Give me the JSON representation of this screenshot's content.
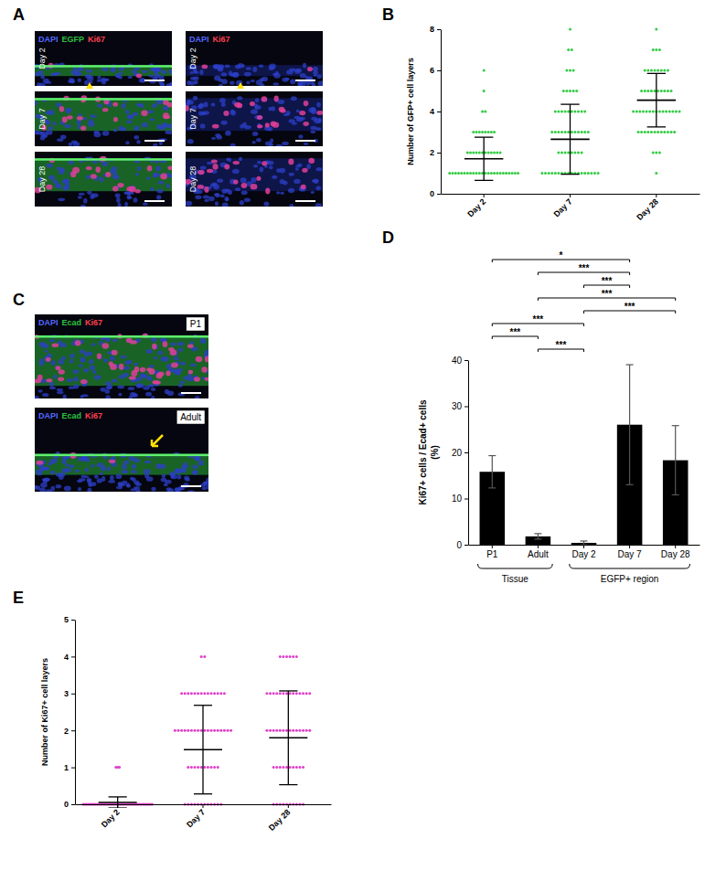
{
  "panel_letters": [
    "A",
    "B",
    "C",
    "D",
    "E"
  ],
  "images": {
    "A": {
      "columns": [
        {
          "channels": [
            {
              "text": "DAPI",
              "color": "#5566ff"
            },
            {
              "text": "EGFP",
              "color": "#2fc23f"
            },
            {
              "text": "Ki67",
              "color": "#ff4050"
            }
          ]
        },
        {
          "channels": [
            {
              "text": "DAPI",
              "color": "#5566ff"
            },
            {
              "text": "Ki67",
              "color": "#ff4050"
            }
          ]
        }
      ],
      "rows": [
        "Day 2",
        "Day 7",
        "Day 28"
      ]
    },
    "C": {
      "channels": [
        {
          "text": "DAPI",
          "color": "#5566ff"
        },
        {
          "text": "Ecad",
          "color": "#2fc23f"
        },
        {
          "text": "Ki67",
          "color": "#ff4050"
        }
      ],
      "panels": [
        "P1",
        "Adult"
      ]
    }
  },
  "chart_data": [
    {
      "type": "dot_plot",
      "categories": [
        "Day 2",
        "Day 7",
        "Day 28"
      ],
      "y_label": "Number of GFP+ cell layers",
      "ylim": [
        0,
        8
      ],
      "yticks": [
        0,
        2,
        4,
        6,
        8
      ],
      "color": "#33cc44",
      "points": [
        [
          1,
          1,
          1,
          1,
          1,
          1,
          1,
          1,
          1,
          1,
          1,
          1,
          1,
          1,
          1,
          1,
          1,
          1,
          1,
          1,
          1,
          1,
          1,
          1,
          2,
          2,
          2,
          2,
          2,
          2,
          2,
          2,
          2,
          2,
          2,
          2,
          3,
          3,
          3,
          3,
          3,
          3,
          3,
          3,
          4,
          4,
          5,
          6
        ],
        [
          1,
          1,
          1,
          1,
          1,
          1,
          1,
          1,
          1,
          1,
          1,
          1,
          1,
          1,
          1,
          1,
          1,
          1,
          2,
          2,
          2,
          2,
          2,
          2,
          2,
          2,
          3,
          3,
          3,
          3,
          3,
          3,
          3,
          3,
          3,
          3,
          3,
          3,
          4,
          4,
          4,
          4,
          4,
          4,
          4,
          4,
          4,
          4,
          5,
          5,
          5,
          5,
          5,
          6,
          6,
          6,
          7,
          7,
          8
        ],
        [
          1,
          2,
          2,
          2,
          3,
          3,
          3,
          3,
          3,
          3,
          3,
          3,
          3,
          3,
          3,
          3,
          4,
          4,
          4,
          4,
          4,
          4,
          4,
          4,
          4,
          4,
          4,
          4,
          4,
          4,
          4,
          5,
          5,
          5,
          5,
          5,
          5,
          5,
          5,
          5,
          5,
          6,
          6,
          6,
          6,
          6,
          6,
          6,
          6,
          7,
          7,
          7,
          8
        ]
      ],
      "mean": [
        1.7,
        2.65,
        4.55
      ],
      "sd": [
        1.05,
        1.7,
        1.3
      ]
    },
    {
      "type": "bar",
      "categories": [
        "P1",
        "Adult",
        "Day 2",
        "Day 7",
        "Day 28"
      ],
      "values": [
        15.8,
        1.8,
        0.4,
        26,
        18.3
      ],
      "errors": [
        3.5,
        0.6,
        0.4,
        13,
        7.5
      ],
      "color": "#000000",
      "y_label": [
        "Ki67+ cells / Ecad+ cells",
        "(%)"
      ],
      "ylim": [
        0,
        40
      ],
      "yticks": [
        0,
        10,
        20,
        30,
        40
      ],
      "groups": [
        {
          "label": "Tissue",
          "categories": [
            "P1",
            "Adult"
          ]
        },
        {
          "label": "EGFP+ region",
          "categories": [
            "Day 2",
            "Day 7",
            "Day 28"
          ]
        }
      ],
      "comparisons": [
        {
          "between": [
            "P1",
            "Day 7"
          ],
          "label": "*"
        },
        {
          "between": [
            "Adult",
            "Day 7"
          ],
          "label": "***"
        },
        {
          "between": [
            "Day 2",
            "Day 7"
          ],
          "label": "***"
        },
        {
          "between": [
            "Adult",
            "Day 28"
          ],
          "label": "***"
        },
        {
          "between": [
            "Day 2",
            "Day 28"
          ],
          "label": "***"
        },
        {
          "between": [
            "P1",
            "Day 2"
          ],
          "label": "***"
        },
        {
          "between": [
            "P1",
            "Adult"
          ],
          "label": "***"
        },
        {
          "between": [
            "Adult",
            "Day 2"
          ],
          "label": "***"
        }
      ]
    },
    {
      "type": "dot_plot",
      "categories": [
        "Day 2",
        "Day 7",
        "Day 28"
      ],
      "y_label": "Number of Ki67+ cell layers",
      "ylim": [
        0,
        5
      ],
      "yticks": [
        0,
        1,
        2,
        3,
        4,
        5
      ],
      "color": "#e040c8",
      "points": [
        [
          0,
          0,
          0,
          0,
          0,
          0,
          0,
          0,
          0,
          0,
          0,
          0,
          0,
          0,
          0,
          0,
          0,
          0,
          0,
          0,
          0,
          0,
          0,
          0,
          0,
          0,
          0,
          0,
          0,
          0,
          0,
          0,
          0,
          0,
          0,
          0,
          0,
          0,
          0,
          0,
          1,
          1,
          1
        ],
        [
          0,
          0,
          0,
          0,
          0,
          0,
          0,
          0,
          0,
          0,
          0,
          0,
          1,
          1,
          1,
          1,
          1,
          1,
          1,
          1,
          1,
          1,
          2,
          2,
          2,
          2,
          2,
          2,
          2,
          2,
          2,
          2,
          2,
          2,
          2,
          2,
          2,
          2,
          2,
          2,
          3,
          3,
          3,
          3,
          3,
          3,
          3,
          3,
          3,
          3,
          3,
          3,
          3,
          3,
          4,
          4
        ],
        [
          0,
          0,
          0,
          0,
          0,
          0,
          0,
          0,
          0,
          0,
          1,
          1,
          1,
          1,
          1,
          1,
          1,
          1,
          1,
          1,
          2,
          2,
          2,
          2,
          2,
          2,
          2,
          2,
          2,
          2,
          2,
          2,
          2,
          2,
          3,
          3,
          3,
          3,
          3,
          3,
          3,
          3,
          3,
          3,
          3,
          3,
          3,
          3,
          4,
          4,
          4,
          4,
          4,
          4
        ]
      ],
      "mean": [
        0.05,
        1.48,
        1.8
      ],
      "sd": [
        0.15,
        1.2,
        1.27
      ]
    }
  ]
}
